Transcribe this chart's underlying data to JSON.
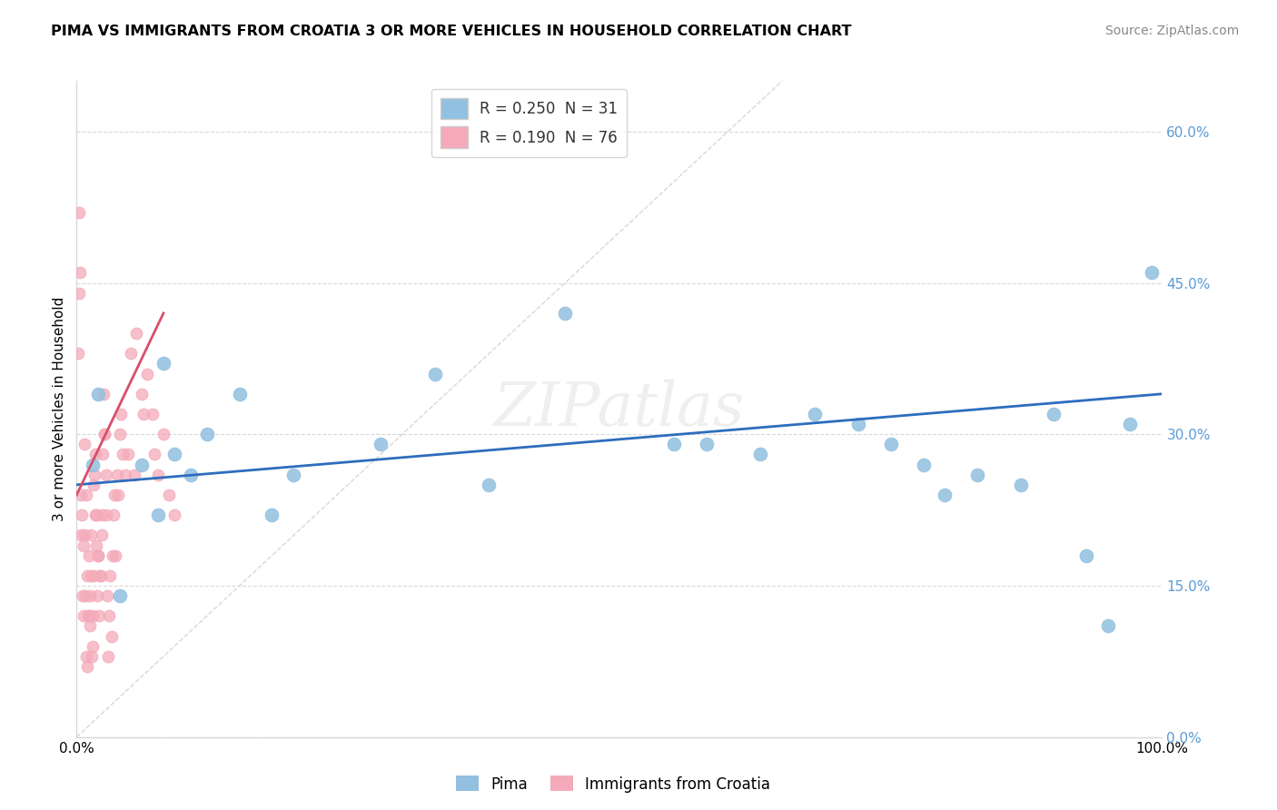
{
  "title": "PIMA VS IMMIGRANTS FROM CROATIA 3 OR MORE VEHICLES IN HOUSEHOLD CORRELATION CHART",
  "source": "Source: ZipAtlas.com",
  "ylabel": "3 or more Vehicles in Household",
  "xlim": [
    0.0,
    100.0
  ],
  "ylim": [
    0.0,
    65.0
  ],
  "yticks": [
    0.0,
    15.0,
    30.0,
    45.0,
    60.0
  ],
  "pima_color": "#92c0e0",
  "pima_edge_color": "#92c0e0",
  "croatia_color": "#f4aab9",
  "croatia_edge_color": "#f4aab9",
  "pima_line_color": "#2e6dbe",
  "croatia_line_color": "#d94f6a",
  "diag_color": "#d8d8d8",
  "grid_color": "#d8d8d8",
  "watermark": "ZIPatlas",
  "legend1_label": "R = 0.250  N = 31",
  "legend2_label": "R = 0.190  N = 76",
  "bottom_legend1": "Pima",
  "bottom_legend2": "Immigrants from Croatia",
  "pima_x": [
    1.5,
    4.0,
    6.0,
    7.5,
    9.0,
    10.5,
    12.0,
    15.0,
    18.0,
    20.0,
    28.0,
    33.0,
    38.0,
    45.0,
    55.0,
    58.0,
    63.0,
    68.0,
    72.0,
    75.0,
    78.0,
    80.0,
    83.0,
    87.0,
    90.0,
    93.0,
    95.0,
    97.0,
    99.0,
    2.0,
    8.0
  ],
  "pima_y": [
    27.0,
    14.0,
    27.0,
    22.0,
    28.0,
    26.0,
    30.0,
    34.0,
    22.0,
    26.0,
    29.0,
    36.0,
    25.0,
    42.0,
    29.0,
    29.0,
    28.0,
    32.0,
    31.0,
    29.0,
    27.0,
    24.0,
    26.0,
    25.0,
    32.0,
    18.0,
    11.0,
    31.0,
    46.0,
    34.0,
    37.0
  ],
  "croatia_x": [
    0.2,
    0.3,
    0.4,
    0.5,
    0.6,
    0.7,
    0.8,
    0.9,
    1.0,
    1.1,
    1.2,
    1.3,
    1.4,
    1.5,
    1.6,
    1.7,
    1.8,
    1.9,
    2.0,
    2.1,
    2.2,
    2.3,
    2.4,
    2.5,
    2.6,
    2.7,
    2.8,
    2.9,
    3.0,
    3.2,
    3.4,
    3.6,
    3.8,
    4.0,
    4.2,
    4.5,
    5.0,
    5.5,
    6.0,
    6.5,
    7.0,
    7.5,
    8.0,
    0.35,
    0.55,
    0.65,
    0.75,
    0.85,
    0.95,
    1.05,
    1.15,
    1.25,
    1.35,
    1.45,
    1.55,
    1.65,
    1.75,
    1.85,
    1.95,
    2.15,
    2.35,
    2.55,
    2.75,
    0.15,
    0.25,
    3.1,
    3.3,
    3.5,
    3.7,
    4.1,
    4.7,
    5.3,
    6.2,
    7.2,
    8.5,
    9.0
  ],
  "croatia_y": [
    52.0,
    46.0,
    24.0,
    22.0,
    19.0,
    29.0,
    14.0,
    8.0,
    7.0,
    12.0,
    11.0,
    16.0,
    8.0,
    9.0,
    25.0,
    22.0,
    19.0,
    14.0,
    18.0,
    12.0,
    16.0,
    22.0,
    28.0,
    34.0,
    30.0,
    26.0,
    14.0,
    8.0,
    12.0,
    10.0,
    22.0,
    18.0,
    24.0,
    30.0,
    28.0,
    26.0,
    38.0,
    40.0,
    34.0,
    36.0,
    32.0,
    26.0,
    30.0,
    20.0,
    14.0,
    12.0,
    20.0,
    24.0,
    16.0,
    12.0,
    18.0,
    14.0,
    20.0,
    12.0,
    16.0,
    26.0,
    28.0,
    22.0,
    18.0,
    16.0,
    20.0,
    30.0,
    22.0,
    38.0,
    44.0,
    16.0,
    18.0,
    24.0,
    26.0,
    32.0,
    28.0,
    26.0,
    32.0,
    28.0,
    24.0,
    22.0
  ],
  "pima_line_x0": 0.0,
  "pima_line_y0": 25.0,
  "pima_line_x1": 100.0,
  "pima_line_y1": 34.0,
  "croatia_line_x0": 0.0,
  "croatia_line_y0": 24.0,
  "croatia_line_x1": 8.0,
  "croatia_line_y1": 42.0,
  "diag_x0": 0.0,
  "diag_y0": 0.0,
  "diag_x1": 65.0,
  "diag_y1": 65.0
}
